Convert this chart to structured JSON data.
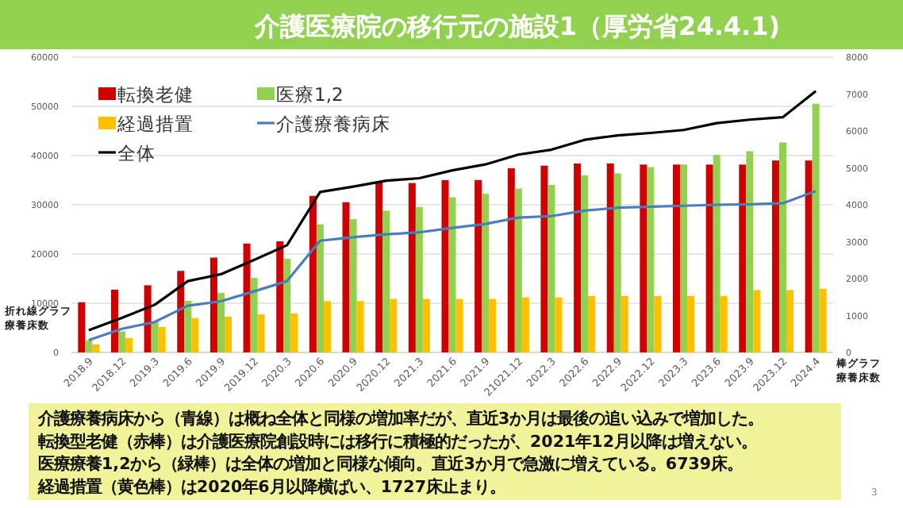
{
  "chart_data": {
    "type": "bar",
    "title": "介護医療院の移行元の施設1（厚労省24.4.1)",
    "categories": [
      "2018.9",
      "2018.12",
      "2019.3",
      "2019.6",
      "2019.9",
      "2019.12",
      "2020.3",
      "2020.6",
      "2020.9",
      "2020.12",
      "2021.3",
      "2021.6",
      "2021.9",
      "21021.12",
      "2022.3",
      "2022.6",
      "2022.9",
      "2022.12",
      "2023.3",
      "2023.6",
      "2023.9",
      "2023.12",
      "2024.4"
    ],
    "series": [
      {
        "name": "転換老健",
        "axis": "y2",
        "color": "#d00000",
        "values": [
          1360,
          1700,
          1820,
          2210,
          2570,
          2950,
          3010,
          4240,
          4070,
          4620,
          4590,
          4670,
          4670,
          4990,
          5060,
          5120,
          5120,
          5090,
          5090,
          5090,
          5090,
          5200,
          5200
        ]
      },
      {
        "name": "医療1,2",
        "axis": "y2",
        "color": "#92d050",
        "values": [
          330,
          570,
          830,
          1400,
          1610,
          2020,
          2540,
          3470,
          3610,
          3840,
          3940,
          4200,
          4300,
          4440,
          4540,
          4800,
          4850,
          5020,
          5090,
          5350,
          5450,
          5690,
          6739
        ]
      },
      {
        "name": "経過措置",
        "axis": "y2",
        "color": "#ffc000",
        "values": [
          220,
          390,
          690,
          930,
          970,
          1030,
          1060,
          1390,
          1390,
          1450,
          1450,
          1450,
          1450,
          1490,
          1490,
          1530,
          1530,
          1530,
          1530,
          1530,
          1690,
          1690,
          1727
        ]
      },
      {
        "name": "介護療養病床",
        "type": "line",
        "axis": "y",
        "color": "#4a7ebb",
        "values": [
          2500,
          4800,
          6200,
          9500,
          10400,
          12400,
          14500,
          22700,
          23400,
          24000,
          24400,
          25300,
          26100,
          27400,
          27700,
          28800,
          29400,
          29600,
          29800,
          30000,
          30100,
          30300,
          32800
        ]
      },
      {
        "name": "全体",
        "type": "line",
        "axis": "y",
        "color": "#000000",
        "values": [
          4500,
          7000,
          9700,
          14500,
          15900,
          18800,
          21800,
          32600,
          33700,
          34900,
          35400,
          37000,
          38200,
          40200,
          41200,
          43200,
          44100,
          44600,
          45200,
          46600,
          47300,
          47800,
          53100
        ]
      }
    ],
    "ylabel": "折れ線グラフ療養床数",
    "y2label": "棒グラフ療養床数",
    "ylim": [
      0,
      60000
    ],
    "yticks": [
      0,
      10000,
      20000,
      30000,
      40000,
      50000,
      60000
    ],
    "y2lim": [
      0,
      8000
    ],
    "y2ticks": [
      0,
      1000,
      2000,
      3000,
      4000,
      5000,
      6000,
      7000,
      8000
    ],
    "grid": "y",
    "legend": "top left",
    "annotations": [
      "介護療養病床から（青線）は概ね全体と同様の増加率だが、直近3か月は最後の追い込みで増加した。",
      "転換型老健（赤棒）は介護医療院創設時には移行に積極的だったが、2021年12月以降は増えない。",
      "医療療養1,2から（緑棒）は全体の増加と同様な傾向。直近3か月で急激に増えている。6739床。",
      "経過措置（黄色棒）は2020年6月以降横ばい、1727床止まり。",
      "3"
    ]
  }
}
